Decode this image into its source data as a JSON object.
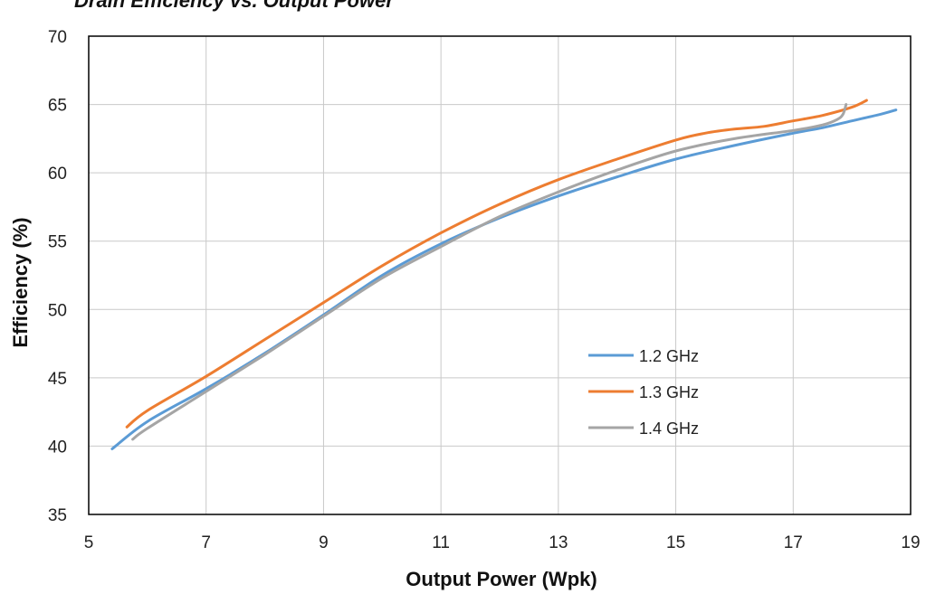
{
  "chart_data": {
    "type": "line",
    "title": "Drain Efficiency vs. Output Power",
    "xlabel": "Output Power (Wpk)",
    "ylabel": "Efficiency  (%)",
    "xlim": [
      5,
      19
    ],
    "ylim": [
      35,
      70
    ],
    "xticks": [
      5,
      7,
      9,
      11,
      13,
      15,
      17,
      19
    ],
    "yticks": [
      35,
      40,
      45,
      50,
      55,
      60,
      65,
      70
    ],
    "grid": true,
    "legend_position": "center-right",
    "series": [
      {
        "name": "1.2 GHz",
        "color": "#5b9bd5",
        "x": [
          5.4,
          6,
          7,
          8,
          9,
          10,
          11,
          12,
          13,
          14,
          15,
          16,
          17,
          17.5,
          18,
          18.5,
          18.75
        ],
        "y": [
          39.8,
          41.8,
          44.2,
          46.8,
          49.6,
          52.5,
          54.8,
          56.7,
          58.3,
          59.7,
          61.0,
          62.0,
          62.9,
          63.3,
          63.8,
          64.3,
          64.6
        ]
      },
      {
        "name": "1.3 GHz",
        "color": "#ed7d31",
        "x": [
          5.65,
          6,
          7,
          8,
          9,
          10,
          11,
          12,
          13,
          14,
          15,
          15.5,
          16,
          16.5,
          17,
          17.5,
          18,
          18.25
        ],
        "y": [
          41.4,
          42.6,
          45.1,
          47.8,
          50.5,
          53.2,
          55.6,
          57.7,
          59.5,
          61.0,
          62.4,
          62.9,
          63.2,
          63.4,
          63.8,
          64.2,
          64.8,
          65.3
        ]
      },
      {
        "name": "1.4 GHz",
        "color": "#a5a5a5",
        "x": [
          5.75,
          6,
          7,
          8,
          9,
          10,
          11,
          12,
          13,
          14,
          15,
          16,
          17,
          17.5,
          17.75,
          17.85,
          17.9
        ],
        "y": [
          40.5,
          41.3,
          44.0,
          46.7,
          49.5,
          52.3,
          54.6,
          56.8,
          58.6,
          60.2,
          61.6,
          62.5,
          63.1,
          63.5,
          63.9,
          64.3,
          65.0
        ]
      }
    ]
  }
}
